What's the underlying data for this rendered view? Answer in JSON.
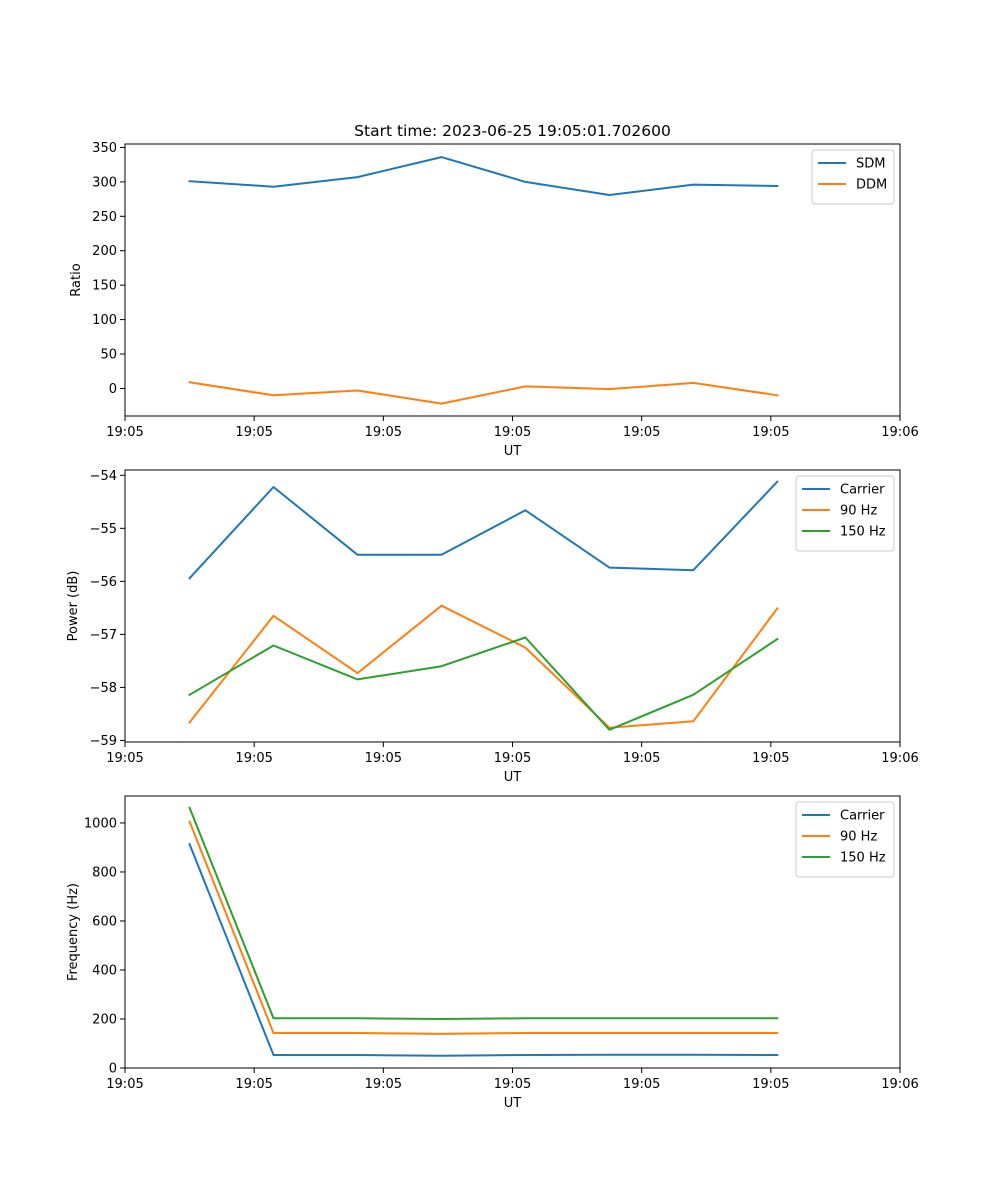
{
  "figure": {
    "title": "Start time: 2023-06-25 19:05:01.702600"
  },
  "chart_data": [
    {
      "type": "line",
      "ylabel": "Ratio",
      "xlabel": "UT",
      "xlim": [
        0,
        12
      ],
      "ylim": [
        -40,
        355
      ],
      "x_ticks": [
        {
          "x": 0,
          "label": "19:05"
        },
        {
          "x": 2,
          "label": "19:05"
        },
        {
          "x": 4,
          "label": "19:05"
        },
        {
          "x": 6,
          "label": "19:05"
        },
        {
          "x": 8,
          "label": "19:05"
        },
        {
          "x": 10,
          "label": "19:05"
        },
        {
          "x": 12,
          "label": "19:06"
        }
      ],
      "y_ticks": [
        0,
        50,
        100,
        150,
        200,
        250,
        300,
        350
      ],
      "x": [
        1,
        2.3,
        3.6,
        4.9,
        6.2,
        7.5,
        8.8,
        10.1
      ],
      "series": [
        {
          "name": "SDM",
          "color": "#1f77b4",
          "values": [
            301,
            293,
            307,
            336,
            300,
            281,
            296,
            294
          ]
        },
        {
          "name": "DDM",
          "color": "#ff7f0e",
          "values": [
            9,
            -10,
            -3,
            -22,
            3,
            -1,
            8,
            -10
          ]
        }
      ],
      "legend": "upper right",
      "grid": false
    },
    {
      "type": "line",
      "ylabel": "Power (dB)",
      "xlabel": "UT",
      "xlim": [
        0,
        12
      ],
      "ylim": [
        -59.03,
        -53.9
      ],
      "x_ticks": [
        {
          "x": 0,
          "label": "19:05"
        },
        {
          "x": 2,
          "label": "19:05"
        },
        {
          "x": 4,
          "label": "19:05"
        },
        {
          "x": 6,
          "label": "19:05"
        },
        {
          "x": 8,
          "label": "19:05"
        },
        {
          "x": 10,
          "label": "19:05"
        },
        {
          "x": 12,
          "label": "19:06"
        }
      ],
      "y_ticks": [
        -59,
        -58,
        -57,
        -56,
        -55,
        -54
      ],
      "x": [
        1,
        2.3,
        3.6,
        4.9,
        6.2,
        7.5,
        8.8,
        10.1
      ],
      "series": [
        {
          "name": "Carrier",
          "color": "#1f77b4",
          "values": [
            -55.94,
            -54.22,
            -55.5,
            -55.5,
            -54.66,
            -55.74,
            -55.79,
            -54.12
          ]
        },
        {
          "name": "90 Hz",
          "color": "#ff7f0e",
          "values": [
            -58.66,
            -56.65,
            -57.73,
            -56.46,
            -57.25,
            -58.76,
            -58.64,
            -56.51
          ]
        },
        {
          "name": "150 Hz",
          "color": "#2ca02c",
          "values": [
            -58.14,
            -57.21,
            -57.85,
            -57.6,
            -57.06,
            -58.8,
            -58.14,
            -57.09
          ]
        }
      ],
      "legend": "upper right",
      "grid": false
    },
    {
      "type": "line",
      "ylabel": "Frequency (Hz)",
      "xlabel": "UT",
      "xlim": [
        0,
        12
      ],
      "ylim": [
        0,
        1110
      ],
      "x_ticks": [
        {
          "x": 0,
          "label": "19:05"
        },
        {
          "x": 2,
          "label": "19:05"
        },
        {
          "x": 4,
          "label": "19:05"
        },
        {
          "x": 6,
          "label": "19:05"
        },
        {
          "x": 8,
          "label": "19:05"
        },
        {
          "x": 10,
          "label": "19:05"
        },
        {
          "x": 12,
          "label": "19:06"
        }
      ],
      "y_ticks": [
        0,
        200,
        400,
        600,
        800,
        1000
      ],
      "x": [
        1,
        2.3,
        3.6,
        4.9,
        6.2,
        7.5,
        8.8,
        10.1
      ],
      "series": [
        {
          "name": "Carrier",
          "color": "#1f77b4",
          "values": [
            913,
            53,
            53,
            50,
            53,
            54,
            54,
            53
          ]
        },
        {
          "name": "90 Hz",
          "color": "#ff7f0e",
          "values": [
            1005,
            143,
            143,
            139,
            143,
            143,
            143,
            143
          ]
        },
        {
          "name": "150 Hz",
          "color": "#2ca02c",
          "values": [
            1062,
            203,
            203,
            200,
            203,
            203,
            203,
            203
          ]
        }
      ],
      "legend": "upper right",
      "grid": false
    }
  ]
}
